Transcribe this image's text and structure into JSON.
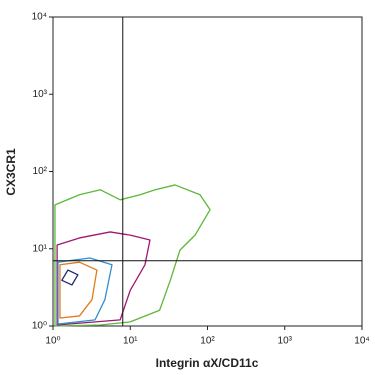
{
  "chart_data": {
    "type": "contour",
    "xlabel": "Integrin αX/CD11c",
    "ylabel": "CX3CR1",
    "log_x": true,
    "log_y": true,
    "xlim": [
      1,
      10000
    ],
    "ylim": [
      1,
      10000
    ],
    "xticks": [
      {
        "value": 1,
        "label": "10⁰"
      },
      {
        "value": 10,
        "label": "10¹"
      },
      {
        "value": 100,
        "label": "10²"
      },
      {
        "value": 1000,
        "label": "10³"
      },
      {
        "value": 10000,
        "label": "10⁴"
      }
    ],
    "yticks": [
      {
        "value": 1,
        "label": "10⁰"
      },
      {
        "value": 10,
        "label": "10¹"
      },
      {
        "value": 100,
        "label": "10²"
      },
      {
        "value": 1000,
        "label": "10³"
      },
      {
        "value": 10000,
        "label": "10⁴"
      }
    ],
    "quadrant": {
      "x": 8,
      "y": 7
    },
    "contours": [
      {
        "color": "#5cb83a",
        "x": [
          1.06,
          2.2,
          4.1,
          7.4,
          13.4,
          21,
          38,
          80,
          108,
          69,
          44,
          33,
          24,
          10,
          4.1,
          1.06
        ],
        "y": [
          37,
          50,
          58,
          43,
          50,
          58,
          67,
          50,
          32,
          15,
          9.6,
          3.9,
          1.6,
          1.13,
          1.03,
          1
        ]
      },
      {
        "color": "#a0186e",
        "x": [
          1.13,
          1.13,
          2.2,
          5.5,
          10,
          18,
          15.5,
          10,
          7.4
        ],
        "y": [
          1.03,
          11.2,
          13.8,
          16.5,
          15,
          13,
          6.2,
          2.9,
          1.2
        ]
      },
      {
        "color": "#2f8fd0",
        "x": [
          1.16,
          1.16,
          3.0,
          5.8,
          4.7,
          3.5
        ],
        "y": [
          1.06,
          6.7,
          7.6,
          6.2,
          2.2,
          1.2
        ]
      },
      {
        "color": "#e07a1a",
        "x": [
          1.23,
          1.23,
          2.2,
          3.7,
          3.2,
          2.2
        ],
        "y": [
          1.27,
          6.2,
          6.7,
          5.3,
          2.2,
          1.35
        ]
      },
      {
        "color": "#1a2a6c",
        "x": [
          1.3,
          1.56,
          2.1,
          1.76
        ],
        "y": [
          3.9,
          5.3,
          4.6,
          3.4
        ]
      }
    ]
  }
}
